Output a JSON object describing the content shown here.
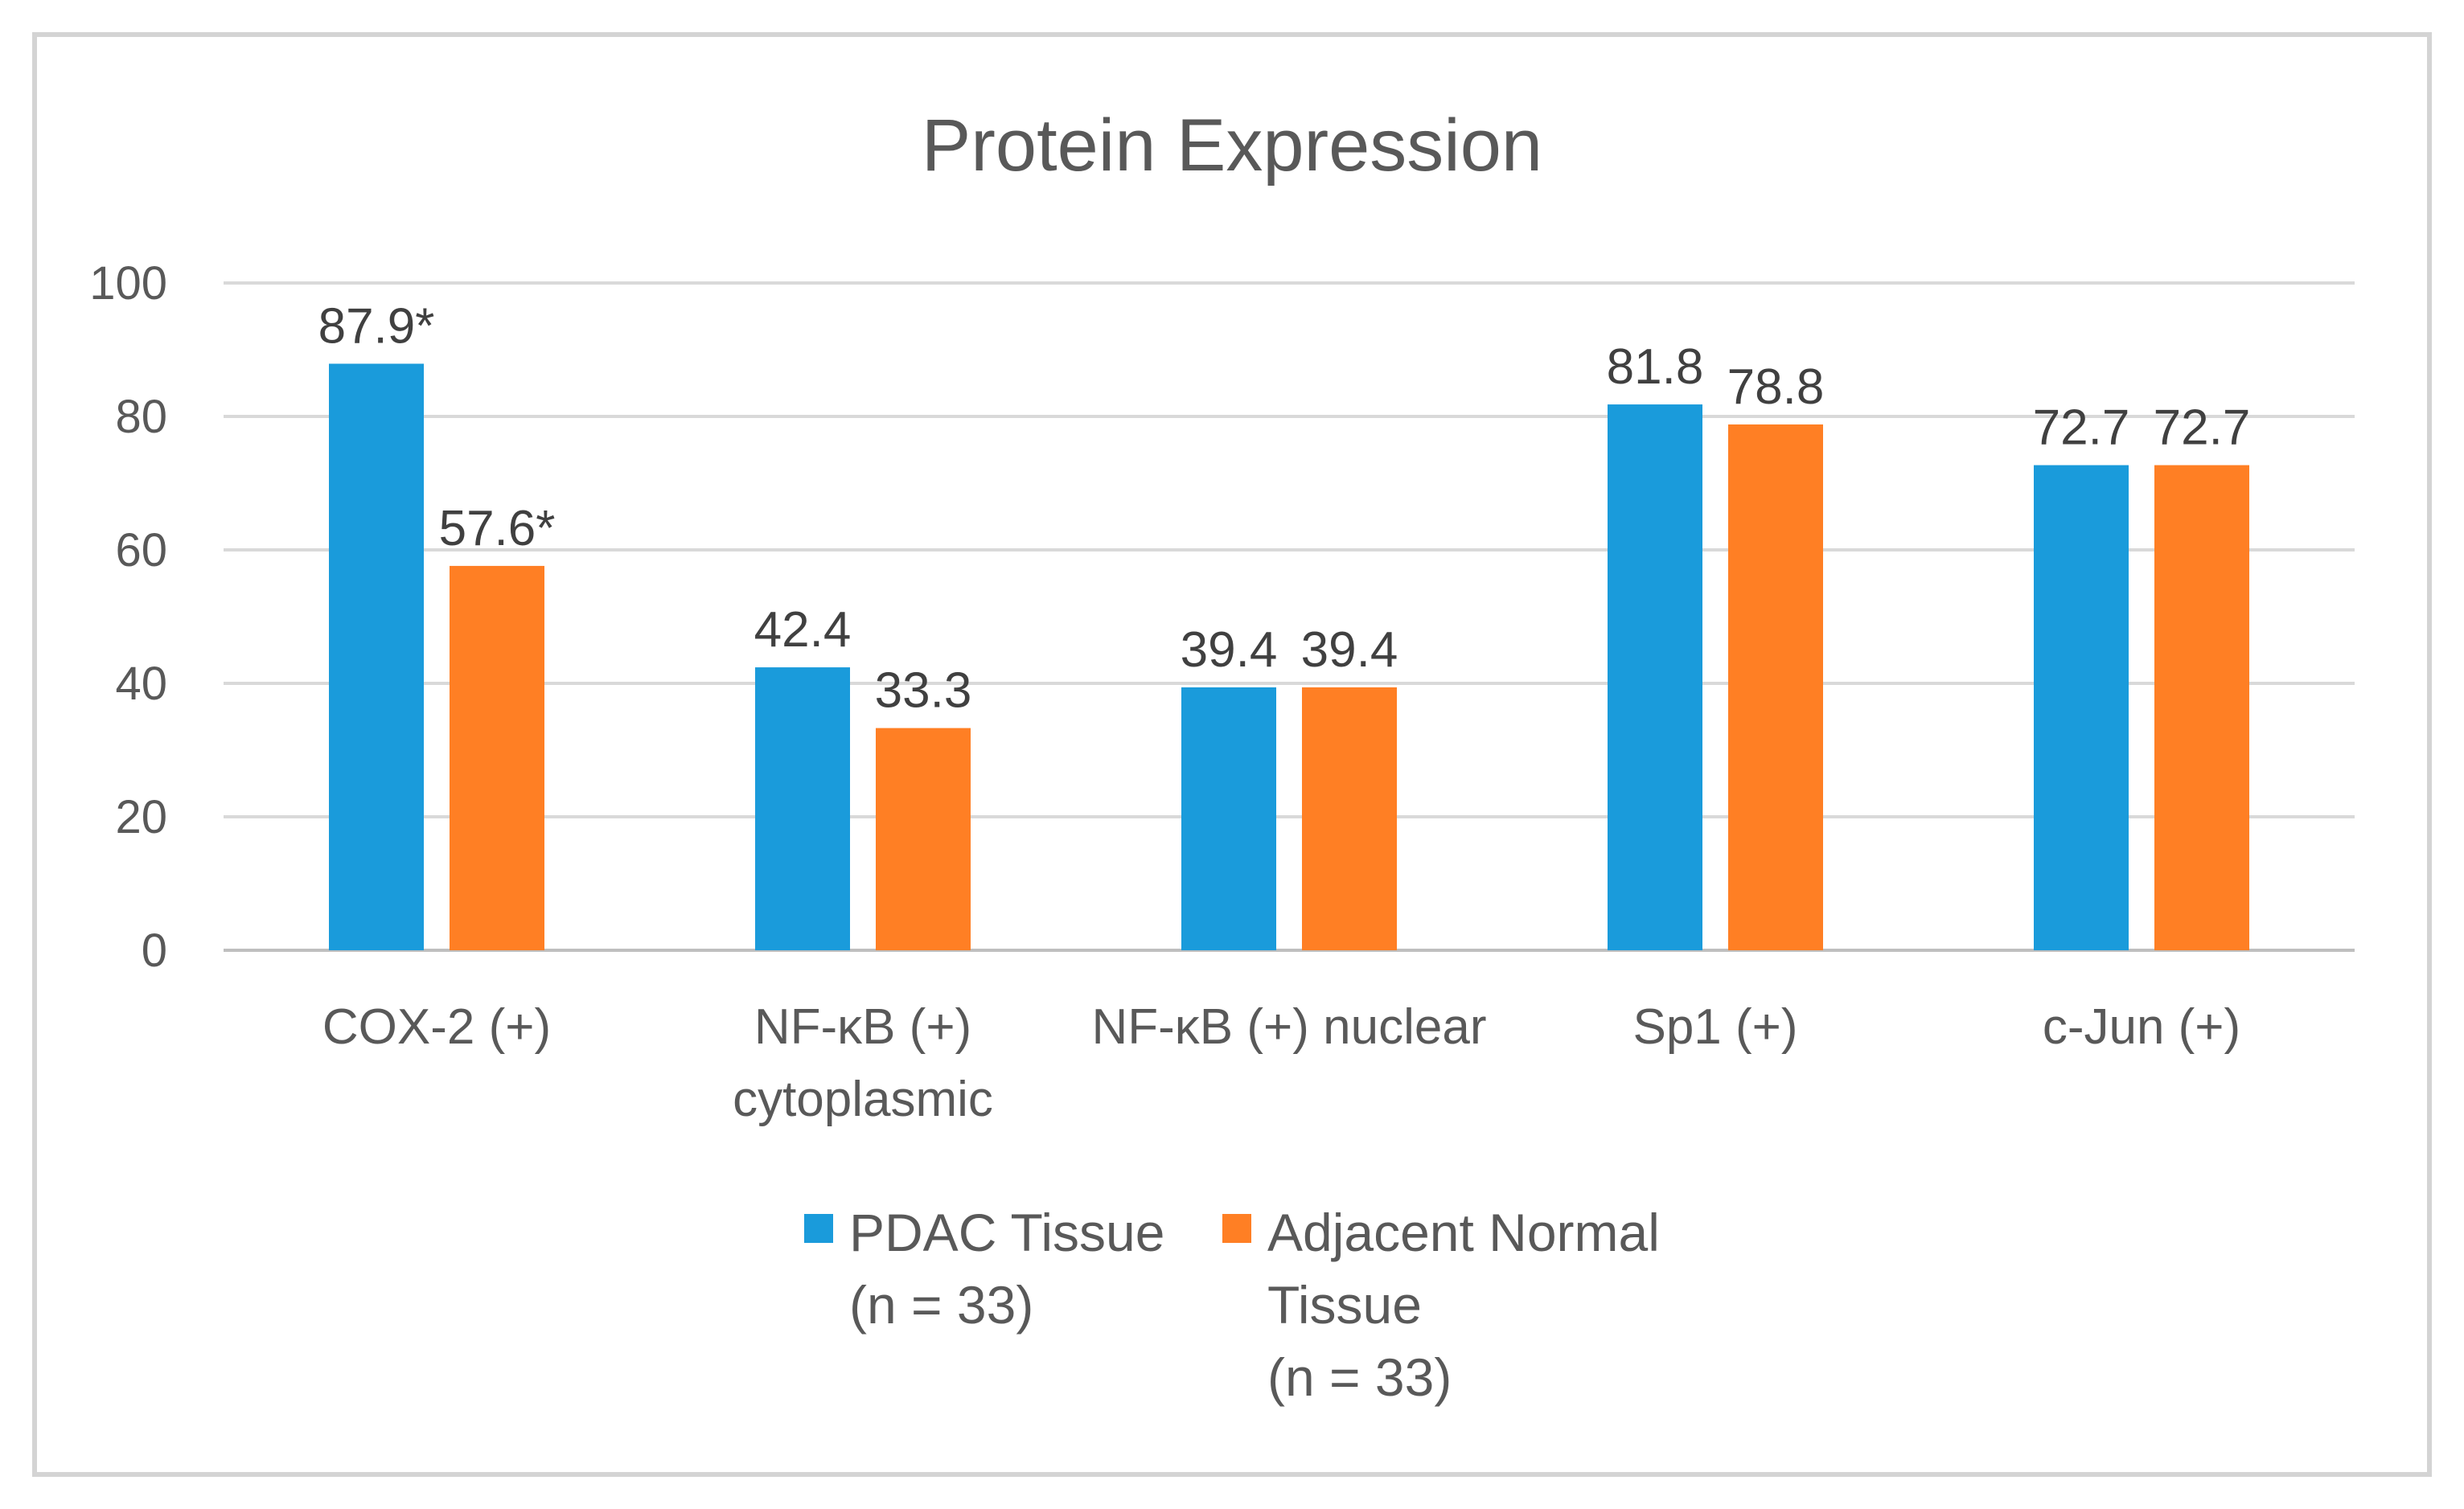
{
  "chart_data": {
    "type": "bar",
    "title": "Protein Expression",
    "xlabel": "",
    "ylabel": "",
    "ylim": [
      0,
      100
    ],
    "yticks": [
      0,
      20,
      40,
      60,
      80,
      100
    ],
    "grid": true,
    "legend_position": "bottom",
    "categories": [
      [
        "COX-2 (+)"
      ],
      [
        "NF-κB (+)",
        "cytoplasmic"
      ],
      [
        "NF-κB (+) nuclear"
      ],
      [
        "Sp1 (+)"
      ],
      [
        "c-Jun (+)"
      ]
    ],
    "series": [
      {
        "name": [
          "PDAC Tissue",
          "(n = 33)"
        ],
        "color": "#1a9bdb",
        "values": [
          87.9,
          42.4,
          39.4,
          81.8,
          72.7
        ],
        "labels": [
          "87.9*",
          "42.4",
          "39.4",
          "81.8",
          "72.7"
        ]
      },
      {
        "name": [
          "Adjacent Normal",
          "Tissue",
          "(n = 33)"
        ],
        "color": "#ff7f24",
        "values": [
          57.6,
          33.3,
          39.4,
          78.8,
          72.7
        ],
        "labels": [
          "57.6*",
          "33.3",
          "39.4",
          "78.8",
          "72.7"
        ]
      }
    ]
  }
}
